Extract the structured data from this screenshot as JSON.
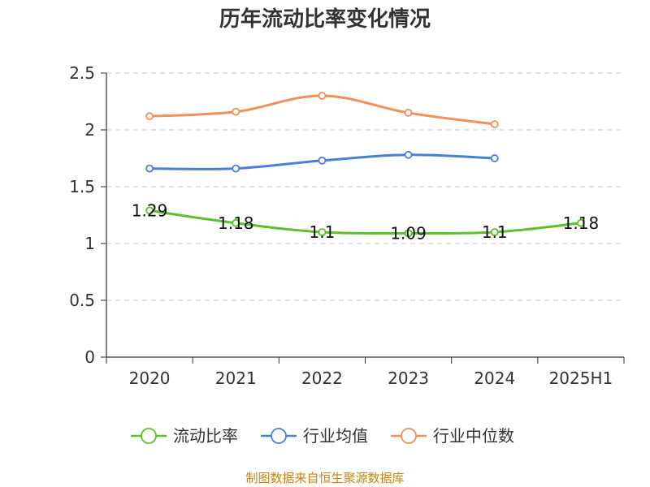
{
  "chart_data": {
    "type": "line",
    "title": "历年流动比率变化情况",
    "categories": [
      "2020",
      "2021",
      "2022",
      "2023",
      "2024",
      "2025H1"
    ],
    "ylim": [
      0,
      2.5
    ],
    "yticks": [
      "0",
      "0.5",
      "1",
      "1.5",
      "2",
      "2.5"
    ],
    "grid": true,
    "legend_position": "bottom",
    "series": [
      {
        "name": "流动比率",
        "color": "#5ac12b",
        "values": [
          1.29,
          1.18,
          1.1,
          1.09,
          1.1,
          1.18
        ],
        "labels": [
          "1.29",
          "1.18",
          "1.1",
          "1.09",
          "1.1",
          "1.18"
        ]
      },
      {
        "name": "行业均值",
        "color": "#4a7fd6",
        "values": [
          1.66,
          1.66,
          1.73,
          1.78,
          1.75,
          null
        ]
      },
      {
        "name": "行业中位数",
        "color": "#f58f57",
        "values": [
          2.12,
          2.16,
          2.3,
          2.15,
          2.05,
          null
        ]
      }
    ]
  },
  "footer": {
    "source": "制图数据来自恒生聚源数据库"
  }
}
